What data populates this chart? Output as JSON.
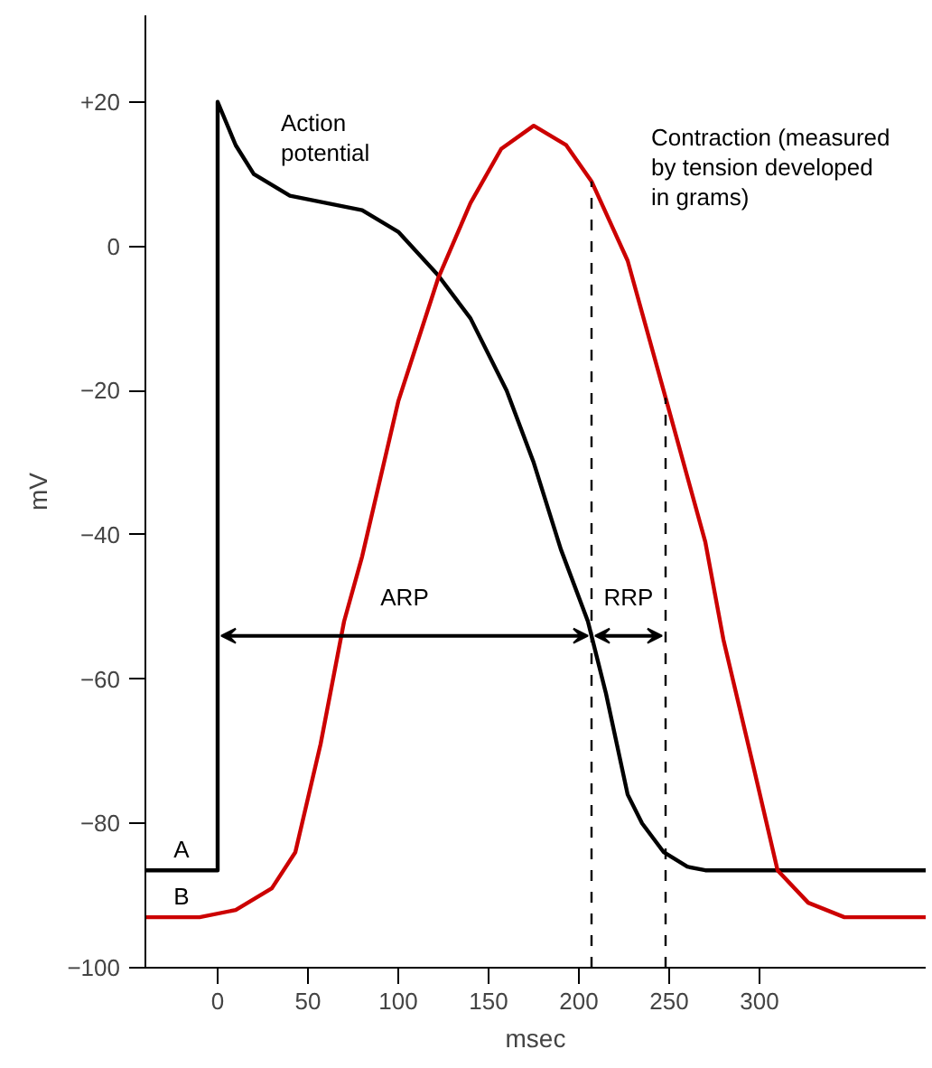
{
  "chart_data": {
    "type": "line",
    "xlabel": "msec",
    "ylabel": "mV",
    "xlim": [
      -40,
      392
    ],
    "ylim": [
      -100,
      32
    ],
    "xticks": [
      0,
      50,
      100,
      150,
      200,
      250,
      300
    ],
    "yticks": [
      {
        "value": 20,
        "label": "+20"
      },
      0,
      -20,
      -40,
      -60,
      -80,
      -100
    ],
    "grid": false,
    "legend": false,
    "marker": "none",
    "line_style": "solid",
    "series": [
      {
        "name": "Action\npotential",
        "color": "#000000",
        "x": [
          -40,
          0,
          0,
          5,
          10,
          20,
          40,
          60,
          80,
          100,
          122,
          140,
          160,
          175,
          190,
          205,
          215,
          227,
          235,
          247,
          260,
          270,
          392
        ],
        "values": [
          -86.5,
          -86.5,
          20,
          17,
          14,
          10,
          7,
          6,
          5,
          2,
          -4,
          -10,
          -20,
          -30,
          -42,
          -52,
          -62,
          -76,
          -80,
          -84,
          -86,
          -86.5,
          -86.5
        ]
      },
      {
        "name": "Contraction (measured\nby tension developed\nin grams)",
        "color": "#cc0000",
        "x": [
          -40,
          -10,
          10,
          30,
          43,
          57,
          70,
          80,
          100,
          122,
          140,
          157,
          175,
          193,
          207,
          227,
          248,
          270,
          280,
          297,
          310,
          327,
          347,
          392
        ],
        "values": [
          -93,
          -93,
          -92,
          -89,
          -84,
          -69,
          -52,
          -43,
          -21.5,
          -4.5,
          6,
          13.5,
          16.7,
          14,
          9,
          -2,
          -21,
          -41,
          -54.5,
          -72.5,
          -86.5,
          -91,
          -93,
          -93
        ]
      }
    ],
    "ref_lines": [
      {
        "axis": "x",
        "value": 207,
        "line_style": "dashed",
        "color": "#000000"
      },
      {
        "axis": "x",
        "value": 248,
        "line_style": "dashed",
        "color": "#000000"
      }
    ],
    "annotations": [
      "ARP",
      "RRP",
      "A",
      "B"
    ]
  }
}
